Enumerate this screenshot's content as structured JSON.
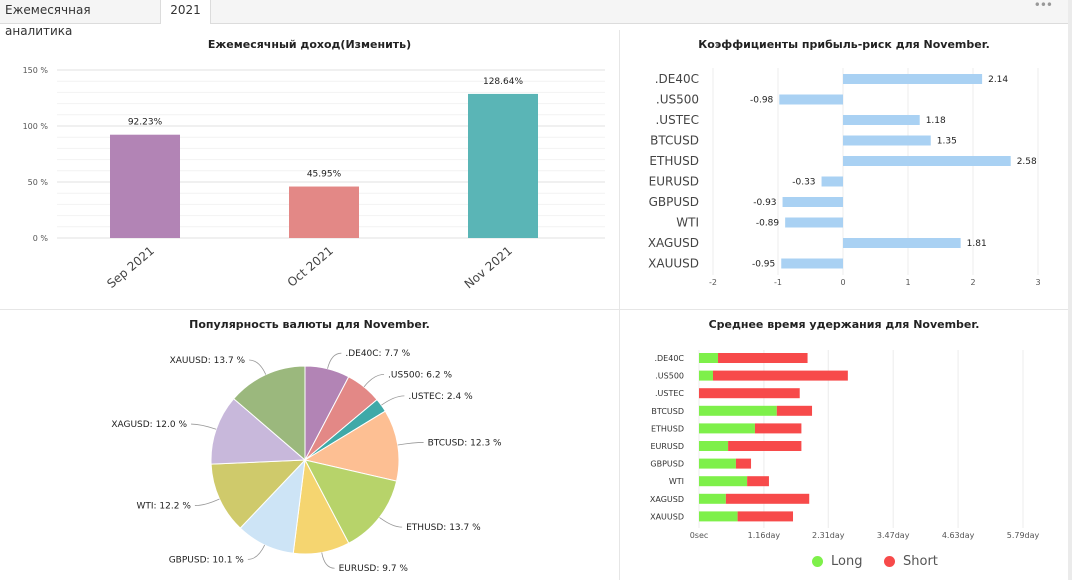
{
  "tabs": [
    {
      "label": "Ежемесячная аналитика"
    },
    {
      "label": "2021"
    }
  ],
  "menu_icon": "more-dots-icon",
  "chart_data": [
    {
      "type": "bar",
      "title": "Ежемесячный доход(Изменить)",
      "categories": [
        "Sep 2021",
        "Oct 2021",
        "Nov 2021"
      ],
      "values": [
        92.23,
        45.95,
        128.64
      ],
      "value_labels": [
        "92.23%",
        "45.95%",
        "128.64%"
      ],
      "colors": [
        "#b284b5",
        "#e38886",
        "#5ab5b6"
      ],
      "ylim": [
        0,
        150
      ],
      "yticks": [
        0,
        50,
        100,
        150
      ],
      "ytick_labels": [
        "0 %",
        "50 %",
        "100 %",
        "150 %"
      ],
      "grid": true
    },
    {
      "type": "bar",
      "orientation": "horizontal",
      "title": "Коэффициенты прибыль-риск для November.",
      "categories": [
        ".DE40C",
        ".US500",
        ".USTEC",
        "BTCUSD",
        "ETHUSD",
        "EURUSD",
        "GBPUSD",
        "WTI",
        "XAGUSD",
        "XAUUSD"
      ],
      "values": [
        2.14,
        -0.98,
        1.18,
        1.35,
        2.58,
        -0.33,
        -0.93,
        -0.89,
        1.81,
        -0.95
      ],
      "value_labels": [
        "2.14",
        "-0.98",
        "1.18",
        "1.35",
        "2.58",
        "-0.33",
        "-0.93",
        "-0.89",
        "1.81",
        "-0.95"
      ],
      "color": "#a9d1f3",
      "xlim": [
        -2,
        3
      ],
      "xticks": [
        -2,
        -1,
        0,
        1,
        2,
        3
      ],
      "xtick_labels": [
        "-2",
        "-1",
        "0",
        "1",
        "2",
        "3"
      ],
      "grid": true
    },
    {
      "type": "pie",
      "title": "Популярность валюты для November.",
      "labels": [
        ".DE40C",
        ".US500",
        ".USTEC",
        "BTCUSD",
        "ETHUSD",
        "EURUSD",
        "GBPUSD",
        "WTI",
        "XAGUSD",
        "XAUUSD"
      ],
      "values": [
        7.7,
        6.2,
        2.4,
        12.3,
        13.7,
        9.7,
        10.1,
        12.2,
        12.0,
        13.7
      ],
      "slice_labels": [
        ".DE40C: 7.7 %",
        ".US500: 6.2 %",
        ".USTEC: 2.4 %",
        "BTCUSD: 12.3 %",
        "ETHUSD: 13.7 %",
        "EURUSD: 9.7 %",
        "GBPUSD: 10.1 %",
        "WTI: 12.2 %",
        "XAGUSD: 12.0 %",
        "XAUUSD: 13.7 %"
      ],
      "colors": [
        "#b284b5",
        "#e38886",
        "#3fa9a8",
        "#fdbf93",
        "#b7d36a",
        "#f5d570",
        "#cde4f6",
        "#cfca6b",
        "#c8b8db",
        "#9bb87d"
      ]
    },
    {
      "type": "bar",
      "orientation": "horizontal",
      "stacked": true,
      "title": "Среднее время удержания для November.",
      "categories": [
        ".DE40C",
        ".US500",
        ".USTEC",
        "BTCUSD",
        "ETHUSD",
        "EURUSD",
        "GBPUSD",
        "WTI",
        "XAGUSD",
        "XAUUSD"
      ],
      "series": [
        {
          "name": "Long",
          "color": "#7ef04a",
          "values": [
            0.34,
            0.25,
            0.0,
            1.39,
            1.0,
            0.52,
            0.66,
            0.86,
            0.48,
            0.69
          ]
        },
        {
          "name": "Short",
          "color": "#f74a4a",
          "values": [
            1.6,
            2.41,
            1.8,
            0.63,
            0.83,
            1.31,
            0.27,
            0.39,
            1.49,
            0.99
          ]
        }
      ],
      "xlim": [
        0,
        5.79
      ],
      "xticks": [
        0,
        1.16,
        2.31,
        3.47,
        4.63,
        5.79
      ],
      "xtick_labels": [
        "0sec",
        "1.16day",
        "2.31day",
        "3.47day",
        "4.63day",
        "5.79day"
      ],
      "xlabel_unit": "day",
      "grid": true,
      "legend_position": "bottom"
    }
  ]
}
